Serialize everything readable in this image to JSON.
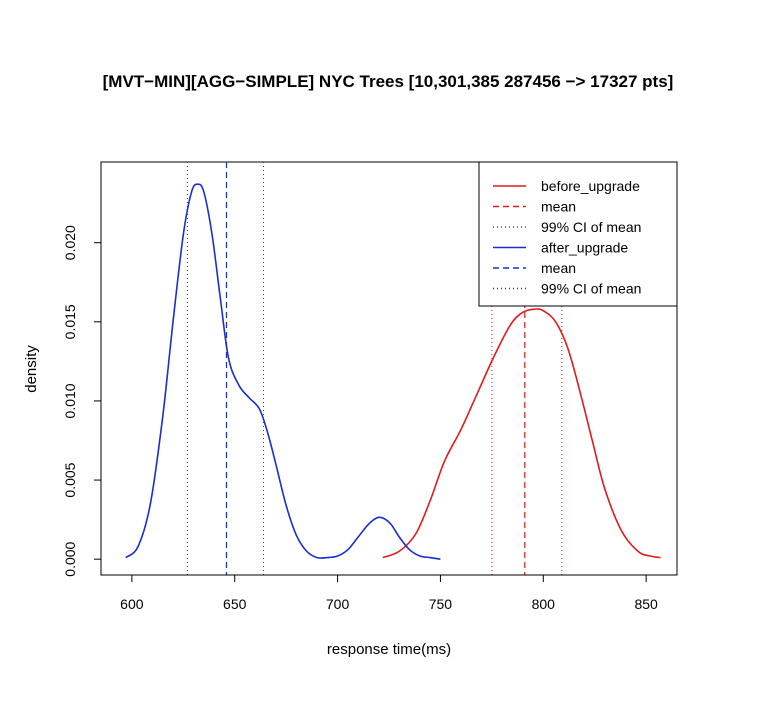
{
  "chart_data": {
    "type": "line",
    "title": "[MVT−MIN][AGG−SIMPLE] NYC Trees [10,301,385  287456 −> 17327 pts]",
    "xlabel": "response time(ms)",
    "ylabel": "density",
    "xlim": [
      585,
      865
    ],
    "ylim": [
      -0.001,
      0.0251
    ],
    "x_ticks": [
      600,
      650,
      700,
      750,
      800,
      850
    ],
    "x_tick_labels": [
      "600",
      "650",
      "700",
      "750",
      "800",
      "850"
    ],
    "y_ticks": [
      0.0,
      0.005,
      0.01,
      0.015,
      0.02
    ],
    "y_tick_labels": [
      "0.000",
      "0.005",
      "0.010",
      "0.015",
      "0.020"
    ],
    "legend_position": "top-right",
    "legend": [
      {
        "label": "before_upgrade",
        "color": "#e31a1c",
        "style": "solid"
      },
      {
        "label": "mean",
        "color": "#e31a1c",
        "style": "dashed"
      },
      {
        "label": "99% CI  of mean",
        "color": "#e31a1c",
        "style": "dotted"
      },
      {
        "label": "after_upgrade",
        "color": "#1a2ed1",
        "style": "solid"
      },
      {
        "label": "mean",
        "color": "#1a2ed1",
        "style": "dashed"
      },
      {
        "label": "99% CI  of mean",
        "color": "#1a2ed1",
        "style": "dotted"
      }
    ],
    "series": [
      {
        "name": "before_upgrade",
        "color": "#e31a1c",
        "x": [
          722,
          730,
          738,
          745,
          752,
          760,
          768,
          776,
          784,
          790,
          796,
          800,
          806,
          812,
          818,
          824,
          830,
          838,
          846,
          852,
          857
        ],
        "y": [
          0.0001,
          0.0005,
          0.0016,
          0.0037,
          0.0062,
          0.0082,
          0.0105,
          0.0128,
          0.0148,
          0.0156,
          0.0158,
          0.0157,
          0.015,
          0.0133,
          0.0105,
          0.0074,
          0.0044,
          0.0018,
          0.0005,
          0.0002,
          0.0001
        ],
        "mean": 791,
        "ci": [
          775,
          809
        ]
      },
      {
        "name": "after_upgrade",
        "color": "#1a2ed1",
        "x": [
          597,
          603,
          609,
          615,
          620,
          625,
          629,
          632,
          635,
          639,
          643,
          647,
          652,
          657,
          662,
          666,
          670,
          675,
          680,
          685,
          690,
          695,
          700,
          705,
          710,
          715,
          719,
          722,
          726,
          730,
          735,
          740,
          745,
          750
        ],
        "y": [
          0.0001,
          0.0008,
          0.0035,
          0.009,
          0.015,
          0.0205,
          0.0232,
          0.0237,
          0.0232,
          0.0205,
          0.0165,
          0.0127,
          0.011,
          0.0102,
          0.0095,
          0.008,
          0.006,
          0.0034,
          0.0015,
          0.0005,
          0.0001,
          0.0001,
          0.0002,
          0.0006,
          0.0014,
          0.0022,
          0.0026,
          0.0026,
          0.0022,
          0.0014,
          0.0006,
          0.0002,
          0.0001,
          0.0
        ],
        "mean": 646,
        "ci": [
          627,
          664
        ]
      }
    ]
  }
}
